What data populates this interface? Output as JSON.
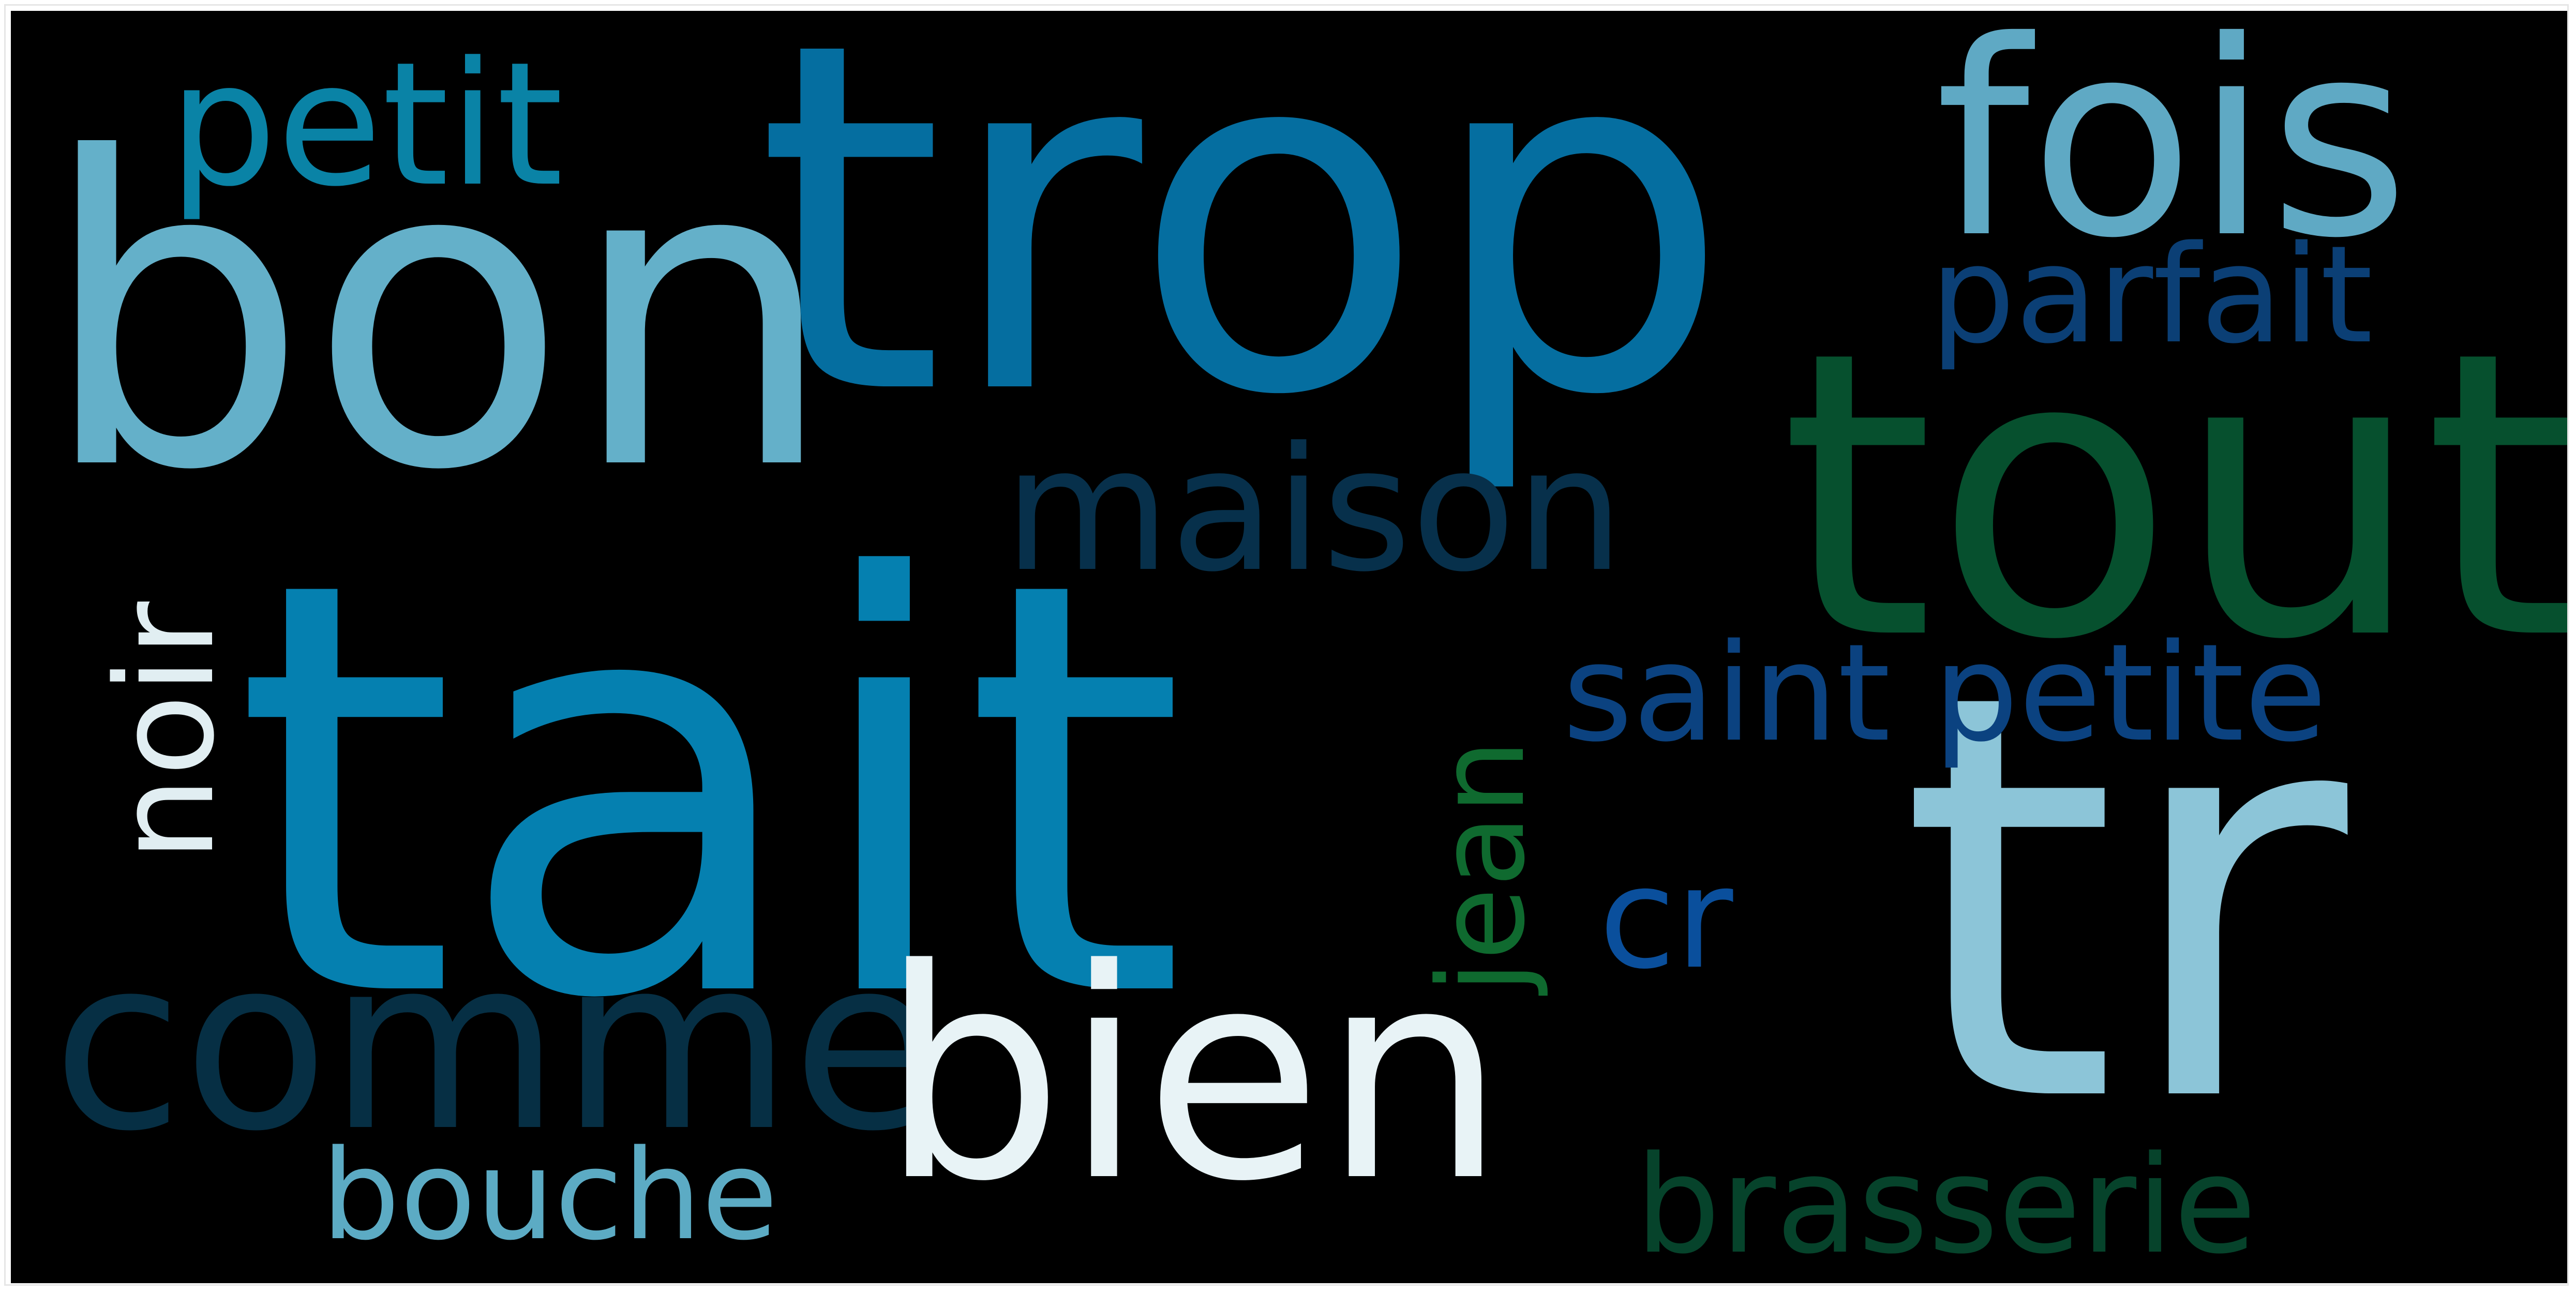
{
  "colors": {
    "background": "#000000",
    "frame_border": "#e6e6e6"
  },
  "words": [
    {
      "id": "trop",
      "text": "trop",
      "color": "#056ea0"
    },
    {
      "id": "bon",
      "text": "bon",
      "color": "#64b0c9"
    },
    {
      "id": "tait",
      "text": "tait",
      "color": "#0580b0"
    },
    {
      "id": "tr",
      "text": "tr",
      "color": "#8cc5d8"
    },
    {
      "id": "tout",
      "text": "tout",
      "color": "#06502e"
    },
    {
      "id": "fois",
      "text": "fois",
      "color": "#5fa9c4"
    },
    {
      "id": "petit",
      "text": "petit",
      "color": "#0a83a6"
    },
    {
      "id": "parfait",
      "text": "parfait",
      "color": "#0b3f75"
    },
    {
      "id": "maison",
      "text": "maison",
      "color": "#07304b"
    },
    {
      "id": "saint-petite",
      "text": "saint petite",
      "color": "#0b4280"
    },
    {
      "id": "noir",
      "text": "noir",
      "color": "#e1eef2"
    },
    {
      "id": "jean",
      "text": "jean",
      "color": "#0f6a2f"
    },
    {
      "id": "cr",
      "text": "cr",
      "color": "#0a4f9c"
    },
    {
      "id": "comme",
      "text": "comme",
      "color": "#062f44"
    },
    {
      "id": "bien",
      "text": "bien",
      "color": "#e8f3f6"
    },
    {
      "id": "bouche",
      "text": "bouche",
      "color": "#5cabc4"
    },
    {
      "id": "brasserie",
      "text": "brasserie",
      "color": "#06432b"
    }
  ]
}
